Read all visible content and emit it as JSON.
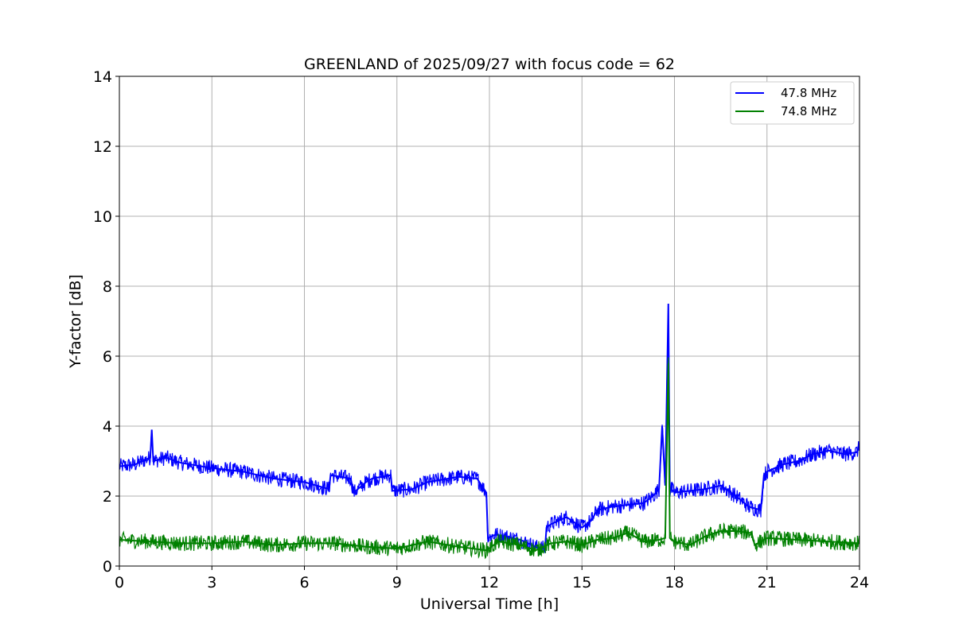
{
  "chart_data": {
    "type": "line",
    "title": "GREENLAND of 2025/09/27 with focus code = 62",
    "xlabel": "Universal Time [h]",
    "ylabel": "Y-factor [dB]",
    "xlim": [
      0,
      24
    ],
    "ylim": [
      0,
      14
    ],
    "xticks": [
      0,
      3,
      6,
      9,
      12,
      15,
      18,
      21,
      24
    ],
    "yticks": [
      0,
      2,
      4,
      6,
      8,
      10,
      12,
      14
    ],
    "grid": true,
    "legend_position": "top-right",
    "series": [
      {
        "name": "47.8 MHz",
        "color": "#0000ff",
        "x": [
          0,
          0.5,
          1.0,
          1.05,
          1.1,
          1.5,
          2,
          3,
          4,
          5,
          6,
          6.8,
          6.85,
          7.5,
          7.6,
          8.0,
          8.2,
          8.8,
          8.85,
          9.5,
          10,
          11,
          11.6,
          11.9,
          11.95,
          12.2,
          12.5,
          13,
          13.5,
          13.8,
          13.85,
          14,
          14.5,
          15,
          15.3,
          15.5,
          16,
          16.5,
          17,
          17.3,
          17.5,
          17.6,
          17.7,
          17.8,
          17.85,
          17.9,
          18,
          19,
          19.5,
          20,
          20.4,
          20.8,
          20.9,
          21,
          21.5,
          22,
          22.5,
          23,
          23.5,
          23.9,
          24
        ],
        "y": [
          2.85,
          2.9,
          3.1,
          3.9,
          3.0,
          3.1,
          2.95,
          2.8,
          2.7,
          2.5,
          2.4,
          2.2,
          2.6,
          2.5,
          2.1,
          2.4,
          2.5,
          2.6,
          2.15,
          2.2,
          2.4,
          2.55,
          2.5,
          2.1,
          0.8,
          0.9,
          0.85,
          0.75,
          0.55,
          0.5,
          1.1,
          1.2,
          1.4,
          1.1,
          1.3,
          1.6,
          1.7,
          1.75,
          1.8,
          2.0,
          2.2,
          4.0,
          2.3,
          7.5,
          2.1,
          2.2,
          2.1,
          2.2,
          2.3,
          2.0,
          1.7,
          1.6,
          2.6,
          2.7,
          2.9,
          3.0,
          3.2,
          3.3,
          3.2,
          3.25,
          3.4
        ]
      },
      {
        "name": "74.8 MHz",
        "color": "#008000",
        "x": [
          0,
          1,
          2,
          3,
          4,
          5,
          6,
          7,
          8,
          9,
          10,
          11,
          11.9,
          12.3,
          13,
          13.5,
          14,
          14.5,
          15,
          15.5,
          16,
          16.5,
          17,
          17.5,
          17.7,
          17.8,
          17.85,
          17.9,
          18,
          18.5,
          19,
          19.5,
          20,
          20.4,
          20.5,
          20.6,
          21,
          22,
          23,
          24
        ],
        "y": [
          0.75,
          0.7,
          0.65,
          0.65,
          0.7,
          0.6,
          0.65,
          0.65,
          0.55,
          0.5,
          0.7,
          0.55,
          0.45,
          0.7,
          0.6,
          0.45,
          0.65,
          0.7,
          0.6,
          0.75,
          0.8,
          0.95,
          0.7,
          0.75,
          0.8,
          5.8,
          0.8,
          0.75,
          0.7,
          0.6,
          0.85,
          1.0,
          1.0,
          0.95,
          0.95,
          0.6,
          0.8,
          0.75,
          0.7,
          0.65
        ]
      }
    ]
  }
}
